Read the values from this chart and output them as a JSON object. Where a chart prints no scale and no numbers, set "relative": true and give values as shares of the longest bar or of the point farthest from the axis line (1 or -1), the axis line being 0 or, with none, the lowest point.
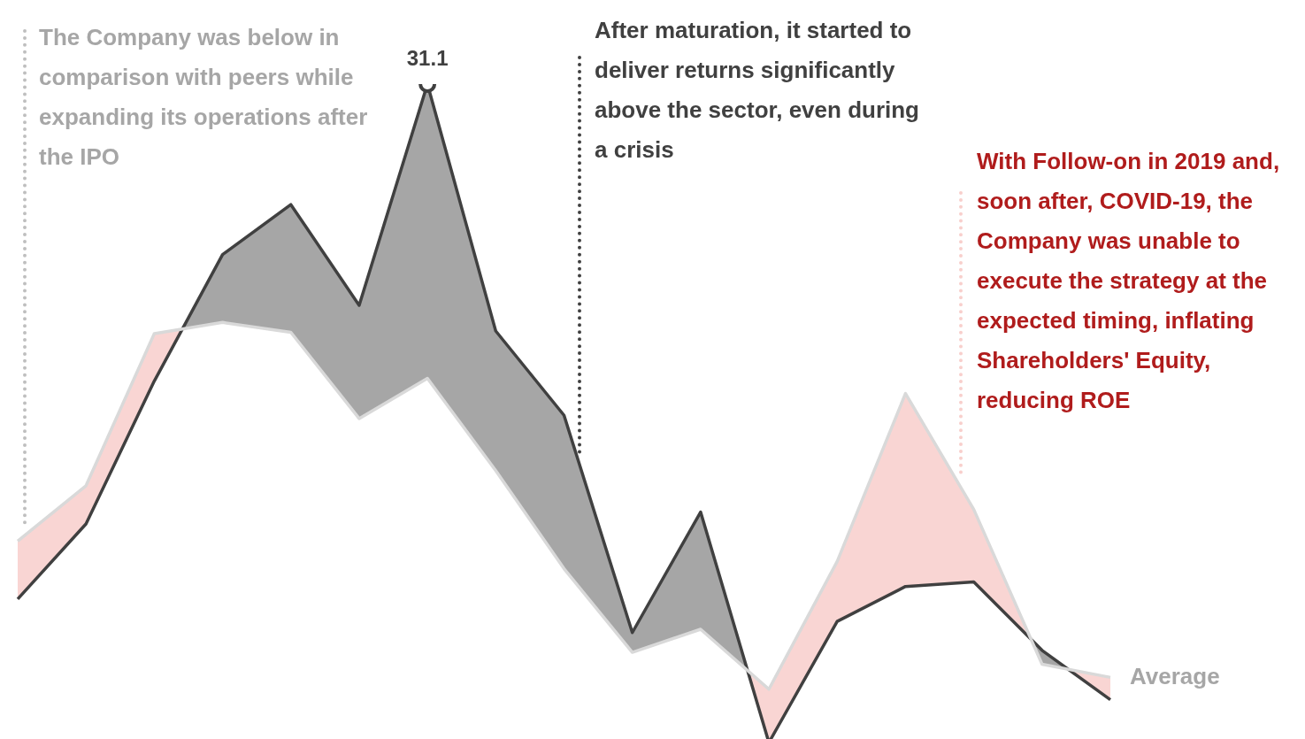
{
  "chart_data": {
    "type": "line",
    "relative": true,
    "categories": [
      null,
      null,
      null,
      null,
      null,
      null,
      null,
      null,
      null,
      null,
      null,
      null,
      null,
      null,
      null,
      null,
      null
    ],
    "series": [
      {
        "color": "#404040",
        "values": [
          0.218,
          0.332,
          0.549,
          0.741,
          0.817,
          0.664,
          1,
          0.625,
          0.497,
          0.167,
          0.35,
          0,
          0.184,
          0.237,
          0.244,
          0.14,
          0.065
        ]
      },
      {
        "name": "Average",
        "color": "#d9d9d9",
        "values": [
          0.306,
          0.39,
          0.621,
          0.638,
          0.623,
          0.492,
          0.553,
          0.413,
          0.264,
          0.137,
          0.172,
          0.081,
          0.275,
          0.53,
          0.354,
          0.119,
          0.099
        ]
      }
    ],
    "annotations": [
      "The Company was below in comparison with peers while expanding its operations after the IPO",
      "After maturation, it started to deliver returns significantly above the sector, even during a crisis",
      "With Follow-on in 2019 and, soon after, COVID-19, the Company was unable to execute the strategy at the expected timing, inflating Shareholders' Equity, reducing ROE",
      {
        "text": "31.1",
        "y": 1
      }
    ],
    "legend": false
  }
}
